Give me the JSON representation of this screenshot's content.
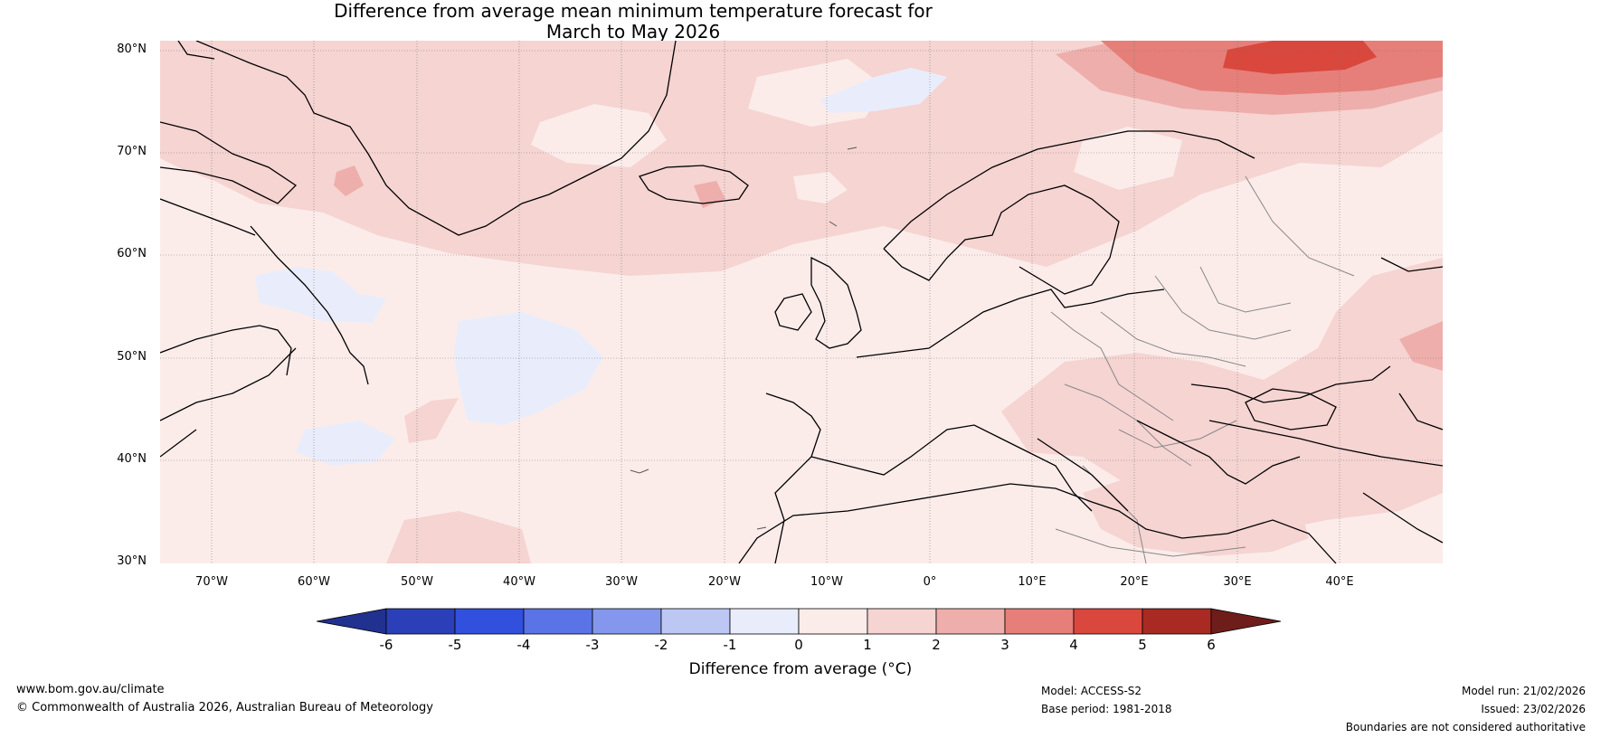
{
  "title": {
    "line1": "Difference from average mean minimum temperature forecast for",
    "line2": "March to May 2026"
  },
  "map": {
    "region": "North Atlantic and Europe",
    "lat_labels": [
      "80°N",
      "70°N",
      "60°N",
      "50°N",
      "40°N",
      "30°N"
    ],
    "lon_labels": [
      "70°W",
      "60°W",
      "50°W",
      "40°W",
      "30°W",
      "20°W",
      "10°W",
      "0°",
      "10°E",
      "20°E",
      "30°E",
      "40°E"
    ]
  },
  "colorbar": {
    "ticks": [
      "-6",
      "-5",
      "-4",
      "-3",
      "-2",
      "-1",
      "0",
      "1",
      "2",
      "3",
      "4",
      "5",
      "6"
    ],
    "colors": [
      "#21318f",
      "#2a3fb8",
      "#3050dd",
      "#5a73e6",
      "#8497ec",
      "#bcc7f4",
      "#e9edfb",
      "#fbecea",
      "#f5d4d2",
      "#eeaeab",
      "#e67f79",
      "#d9473d",
      "#a82a22",
      "#6f1d1a"
    ],
    "label": "Difference from average (°C)",
    "unit_note": "°C"
  },
  "footer": {
    "website": "www.bom.gov.au/climate",
    "copyright": "© Commonwealth of Australia 2026, Australian Bureau of Meteorology",
    "model": "Model: ACCESS-S2",
    "base_period": "Base period: 1981-2018",
    "model_run": "Model run: 21/02/2026",
    "issued": "Issued: 23/02/2026",
    "disclaimer": "Boundaries are not considered authoritative"
  }
}
